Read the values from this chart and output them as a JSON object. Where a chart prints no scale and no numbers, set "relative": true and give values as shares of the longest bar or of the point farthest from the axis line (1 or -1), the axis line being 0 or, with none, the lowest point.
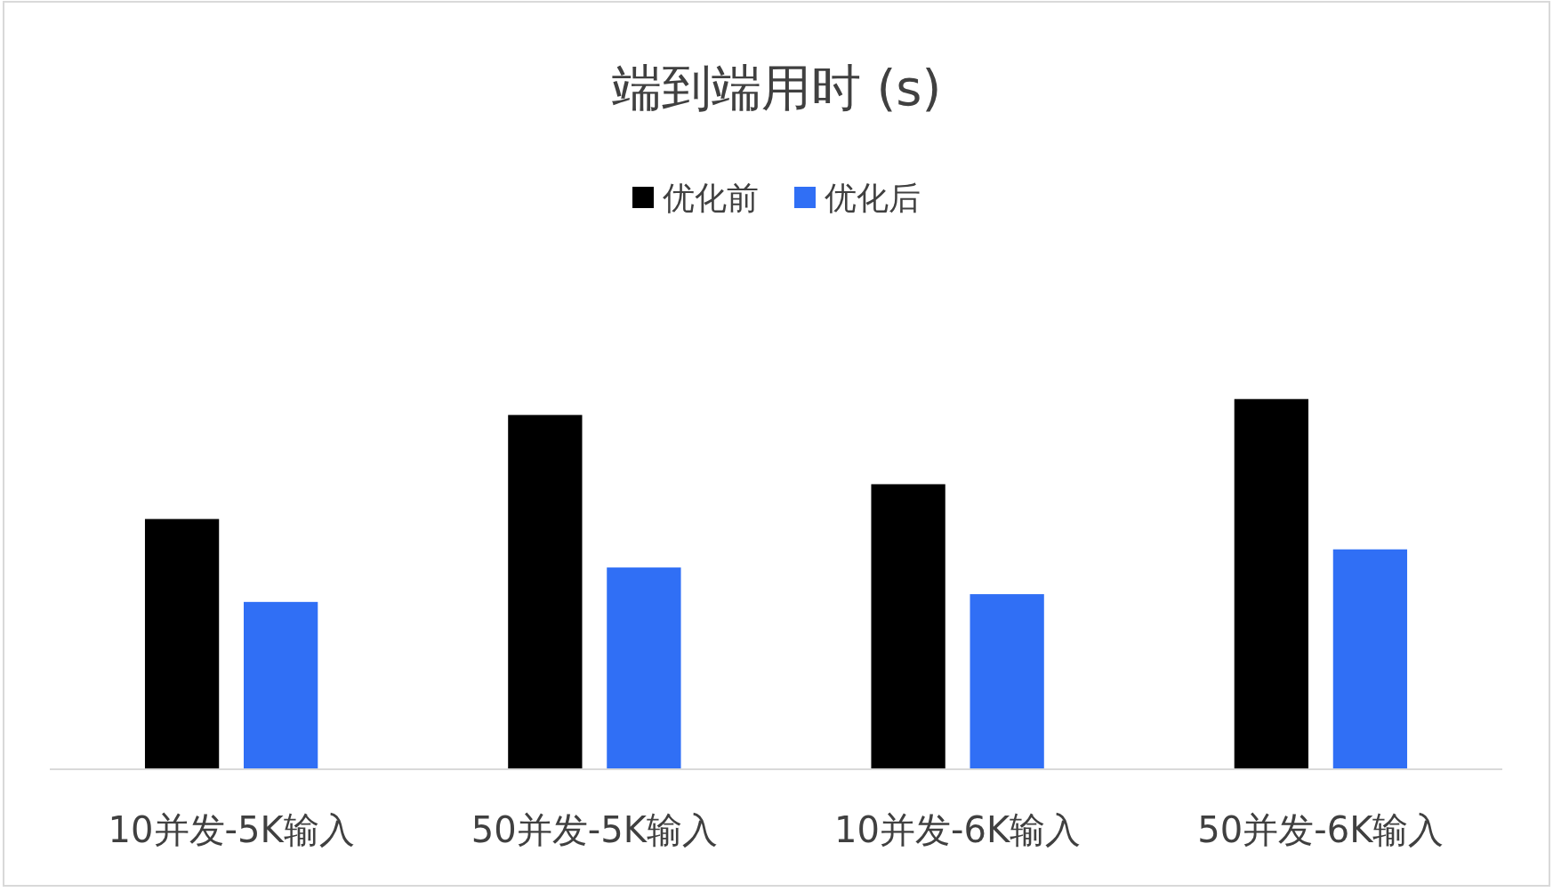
{
  "chart_data": {
    "type": "bar",
    "title": "端到端用时 (s)",
    "relative": true,
    "legend": "top",
    "categories": [
      "10并发-5K输入",
      "50并发-5K输入",
      "10并发-6K输入",
      "50并发-6K输入"
    ],
    "series": [
      {
        "name": "优化前",
        "color": "#000000",
        "values": [
          0.676,
          0.957,
          0.77,
          1.0
        ]
      },
      {
        "name": "优化后",
        "color": "#306ff5",
        "values": [
          0.452,
          0.545,
          0.473,
          0.594
        ]
      }
    ]
  }
}
